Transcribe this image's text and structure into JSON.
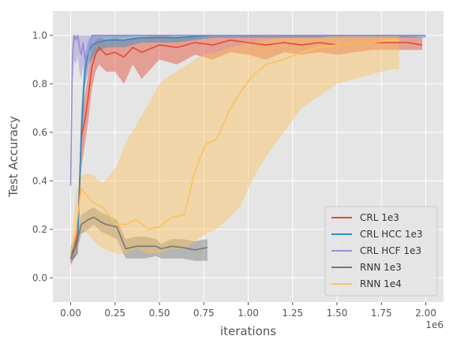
{
  "chart_data": {
    "type": "line",
    "xlabel": "iterations",
    "ylabel": "Test Accuracy",
    "x_offset_text": "1e6",
    "xlim": [
      -0.1,
      2.1
    ],
    "ylim": [
      -0.1,
      1.1
    ],
    "x_ticks": [
      "0.00",
      "0.25",
      "0.50",
      "0.75",
      "1.00",
      "1.25",
      "1.50",
      "1.75",
      "2.00"
    ],
    "y_ticks": [
      "0.0",
      "0.2",
      "0.4",
      "0.6",
      "0.8",
      "1.0"
    ],
    "grid": true,
    "legend_position": "lower right",
    "series": [
      {
        "name": "CRL 1e3",
        "color": "#E24A33",
        "x": [
          0.0,
          0.02,
          0.04,
          0.06,
          0.08,
          0.1,
          0.12,
          0.14,
          0.16,
          0.2,
          0.25,
          0.3,
          0.35,
          0.4,
          0.5,
          0.6,
          0.7,
          0.8,
          0.9,
          1.0,
          1.1,
          1.2,
          1.3,
          1.4,
          1.5,
          1.6,
          1.7,
          1.8,
          1.9,
          1.98
        ],
        "y": [
          0.08,
          0.12,
          0.18,
          0.58,
          0.65,
          0.75,
          0.87,
          0.92,
          0.95,
          0.92,
          0.93,
          0.91,
          0.95,
          0.93,
          0.96,
          0.95,
          0.97,
          0.96,
          0.98,
          0.97,
          0.96,
          0.97,
          0.96,
          0.97,
          0.96,
          0.97,
          0.97,
          0.97,
          0.97,
          0.96
        ],
        "lower": [
          0.05,
          0.08,
          0.1,
          0.45,
          0.55,
          0.65,
          0.78,
          0.85,
          0.88,
          0.85,
          0.85,
          0.8,
          0.88,
          0.82,
          0.9,
          0.88,
          0.92,
          0.9,
          0.93,
          0.92,
          0.9,
          0.93,
          0.92,
          0.93,
          0.92,
          0.93,
          0.94,
          0.94,
          0.94,
          0.94
        ],
        "upper": [
          0.12,
          0.16,
          0.26,
          0.65,
          0.75,
          0.85,
          0.95,
          0.98,
          0.99,
          0.98,
          0.99,
          0.98,
          0.99,
          0.99,
          1.0,
          0.99,
          1.0,
          1.0,
          1.0,
          1.0,
          1.0,
          1.0,
          1.0,
          1.0,
          1.0,
          1.0,
          1.0,
          1.0,
          1.0,
          0.99
        ]
      },
      {
        "name": "CRL HCC 1e3",
        "color": "#348ABD",
        "x": [
          0.0,
          0.02,
          0.04,
          0.06,
          0.08,
          0.1,
          0.12,
          0.15,
          0.2,
          0.3,
          0.4,
          0.5,
          0.6,
          0.8,
          1.0,
          1.2,
          1.4,
          1.6,
          1.8,
          2.0
        ],
        "y": [
          0.1,
          0.12,
          0.15,
          0.6,
          0.85,
          0.93,
          0.96,
          0.97,
          0.98,
          0.98,
          0.99,
          0.99,
          0.99,
          1.0,
          1.0,
          1.0,
          1.0,
          1.0,
          1.0,
          1.0
        ],
        "lower": [
          0.07,
          0.08,
          0.1,
          0.5,
          0.78,
          0.88,
          0.9,
          0.93,
          0.95,
          0.95,
          0.97,
          0.97,
          0.97,
          0.99,
          0.99,
          0.99,
          0.99,
          0.99,
          0.99,
          0.99
        ],
        "upper": [
          0.13,
          0.16,
          0.2,
          0.7,
          0.92,
          0.98,
          1.0,
          1.0,
          1.0,
          1.0,
          1.0,
          1.0,
          1.0,
          1.0,
          1.0,
          1.0,
          1.0,
          1.0,
          1.0,
          1.0
        ]
      },
      {
        "name": "CRL HCF 1e3",
        "color": "#988ED5",
        "x": [
          0.0,
          0.01,
          0.02,
          0.03,
          0.04,
          0.05,
          0.06,
          0.07,
          0.08,
          0.1,
          0.12,
          0.15,
          0.2,
          0.3,
          0.4,
          0.6,
          0.8,
          1.0,
          1.2,
          1.5,
          1.8,
          2.0
        ],
        "y": [
          0.38,
          0.92,
          1.0,
          0.98,
          1.0,
          0.95,
          0.92,
          0.97,
          0.9,
          0.93,
          1.0,
          1.0,
          1.0,
          1.0,
          1.0,
          1.0,
          1.0,
          1.0,
          1.0,
          1.0,
          1.0,
          1.0
        ],
        "lower": [
          0.3,
          0.8,
          0.9,
          0.88,
          0.92,
          0.85,
          0.82,
          0.88,
          0.8,
          0.85,
          0.95,
          0.97,
          0.99,
          0.99,
          1.0,
          1.0,
          1.0,
          1.0,
          1.0,
          1.0,
          1.0,
          1.0
        ],
        "upper": [
          0.45,
          1.0,
          1.0,
          1.0,
          1.0,
          1.0,
          1.0,
          1.0,
          1.0,
          1.0,
          1.0,
          1.0,
          1.0,
          1.0,
          1.0,
          1.0,
          1.0,
          1.0,
          1.0,
          1.0,
          1.0,
          1.0
        ]
      },
      {
        "name": "RNN 1e3",
        "color": "#777777",
        "x": [
          0.0,
          0.03,
          0.06,
          0.1,
          0.13,
          0.17,
          0.2,
          0.26,
          0.31,
          0.37,
          0.42,
          0.48,
          0.51,
          0.57,
          0.63,
          0.7,
          0.77
        ],
        "y": [
          0.08,
          0.13,
          0.22,
          0.24,
          0.25,
          0.23,
          0.22,
          0.21,
          0.12,
          0.13,
          0.13,
          0.13,
          0.12,
          0.13,
          0.125,
          0.115,
          0.125
        ],
        "lower": [
          0.06,
          0.1,
          0.18,
          0.2,
          0.22,
          0.19,
          0.18,
          0.16,
          0.08,
          0.08,
          0.08,
          0.09,
          0.08,
          0.08,
          0.08,
          0.07,
          0.07
        ],
        "upper": [
          0.1,
          0.16,
          0.26,
          0.28,
          0.29,
          0.27,
          0.26,
          0.24,
          0.16,
          0.17,
          0.17,
          0.16,
          0.14,
          0.16,
          0.16,
          0.15,
          0.16
        ]
      },
      {
        "name": "RNN 1e4",
        "color": "#FBC15E",
        "x": [
          0.0,
          0.03,
          0.06,
          0.1,
          0.13,
          0.18,
          0.26,
          0.31,
          0.37,
          0.44,
          0.5,
          0.57,
          0.64,
          0.7,
          0.76,
          0.82,
          0.9,
          0.96,
          1.02,
          1.1,
          1.2,
          1.3,
          1.4,
          1.5,
          1.6,
          1.7,
          1.8,
          1.85
        ],
        "y": [
          0.1,
          0.2,
          0.37,
          0.33,
          0.31,
          0.29,
          0.22,
          0.22,
          0.24,
          0.2,
          0.21,
          0.25,
          0.26,
          0.44,
          0.55,
          0.57,
          0.7,
          0.77,
          0.83,
          0.88,
          0.9,
          0.93,
          0.95,
          0.96,
          0.97,
          0.97,
          0.98,
          0.98
        ],
        "lower": [
          0.08,
          0.1,
          0.2,
          0.18,
          0.15,
          0.12,
          0.1,
          0.1,
          0.12,
          0.1,
          0.1,
          0.12,
          0.12,
          0.15,
          0.18,
          0.2,
          0.25,
          0.3,
          0.4,
          0.5,
          0.6,
          0.7,
          0.75,
          0.8,
          0.82,
          0.84,
          0.86,
          0.86
        ],
        "upper": [
          0.12,
          0.35,
          0.42,
          0.43,
          0.42,
          0.39,
          0.46,
          0.56,
          0.63,
          0.72,
          0.8,
          0.84,
          0.87,
          0.9,
          0.92,
          0.93,
          0.95,
          0.96,
          0.97,
          0.98,
          0.99,
          0.99,
          0.99,
          1.0,
          1.0,
          1.0,
          1.0,
          1.0
        ]
      }
    ]
  }
}
